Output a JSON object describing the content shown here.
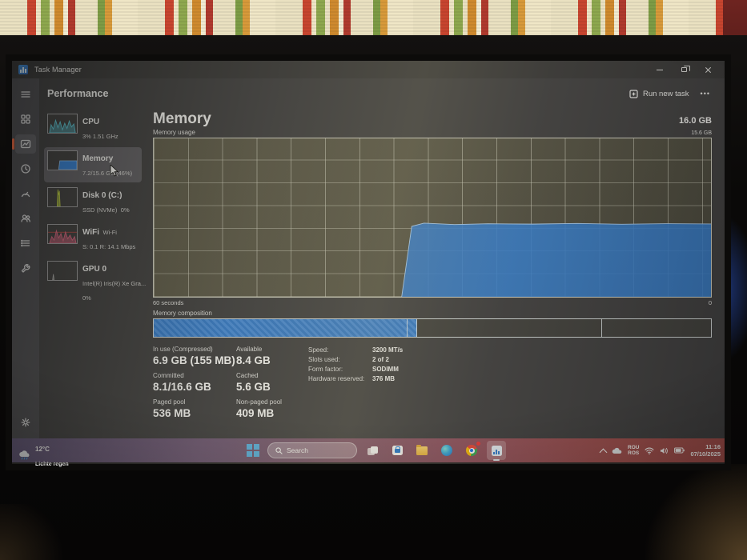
{
  "window": {
    "title": "Task Manager"
  },
  "header": {
    "page_title": "Performance",
    "run_new_task": "Run new task",
    "more": "•••"
  },
  "nav_rail": {
    "items": [
      "menu",
      "processes",
      "performance",
      "app-history",
      "startup-apps",
      "users",
      "details",
      "services"
    ],
    "selected": "performance",
    "settings": "settings"
  },
  "sidebar": {
    "items": [
      {
        "title": "CPU",
        "line1": "3% 1.51 GHz",
        "line2": ""
      },
      {
        "title": "Memory",
        "line1": "7.2/15.6 GB (46%)",
        "line2": ""
      },
      {
        "title": "Disk 0 (C:)",
        "line1": "SSD (NVMe)",
        "line2": "0%"
      },
      {
        "title": "WiFi",
        "line1": "Wi-Fi",
        "line2": "S: 0.1 R: 14.1 Mbps"
      },
      {
        "title": "GPU 0",
        "line1": "Intel(R) Iris(R) Xe Gra...",
        "line2": "0%"
      }
    ]
  },
  "main": {
    "title": "Memory",
    "capacity": "16.0 GB",
    "usage_label": "Memory usage",
    "scale_top": "15.6 GB",
    "timeline_left": "60 seconds",
    "timeline_right": "0",
    "composition_label": "Memory composition",
    "chart": {
      "type": "area",
      "usage_percent": 46,
      "series_pct": [
        [
          0,
          0
        ],
        [
          44.5,
          0
        ],
        [
          46.3,
          44.5
        ],
        [
          48.5,
          46.5
        ],
        [
          54,
          45.6
        ],
        [
          60,
          46.1
        ],
        [
          68,
          45.9
        ],
        [
          76,
          46.3
        ],
        [
          84,
          45.8
        ],
        [
          92,
          46.2
        ],
        [
          100,
          46.0
        ]
      ],
      "fill_color": "#2f7cd4",
      "line_color": "#a9cdf2"
    },
    "composition_segments": [
      {
        "name": "in-use",
        "end_pct": 45.6,
        "filled": true
      },
      {
        "name": "modified",
        "end_pct": 47.2,
        "filled": true
      },
      {
        "name": "standby",
        "end_pct": 80.5,
        "filled": false
      },
      {
        "name": "free",
        "end_pct": 100,
        "filled": false
      }
    ],
    "stats": [
      {
        "label": "In use (Compressed)",
        "value": "6.9 GB (155 MB)"
      },
      {
        "label": "Available",
        "value": "8.4 GB"
      },
      {
        "label": "Committed",
        "value": "8.1/16.6 GB"
      },
      {
        "label": "Cached",
        "value": "5.6 GB"
      },
      {
        "label": "Paged pool",
        "value": "536 MB"
      },
      {
        "label": "Non-paged pool",
        "value": "409 MB"
      }
    ],
    "details": [
      {
        "label": "Speed:",
        "value": "3200 MT/s"
      },
      {
        "label": "Slots used:",
        "value": "2 of 2"
      },
      {
        "label": "Form factor:",
        "value": "SODIMM"
      },
      {
        "label": "Hardware reserved:",
        "value": "376 MB"
      }
    ]
  },
  "taskbar": {
    "search_placeholder": "Search",
    "weather": {
      "temp": "12°C",
      "condition": "Lichte regen"
    },
    "tray": {
      "language_top": "ROU",
      "language_bottom": "ROS",
      "time": "11:16",
      "date": "07/10/2025"
    }
  },
  "colors": {
    "accent_blue": "#2f7cd4",
    "rail_accent_orange": "#e8623c"
  }
}
